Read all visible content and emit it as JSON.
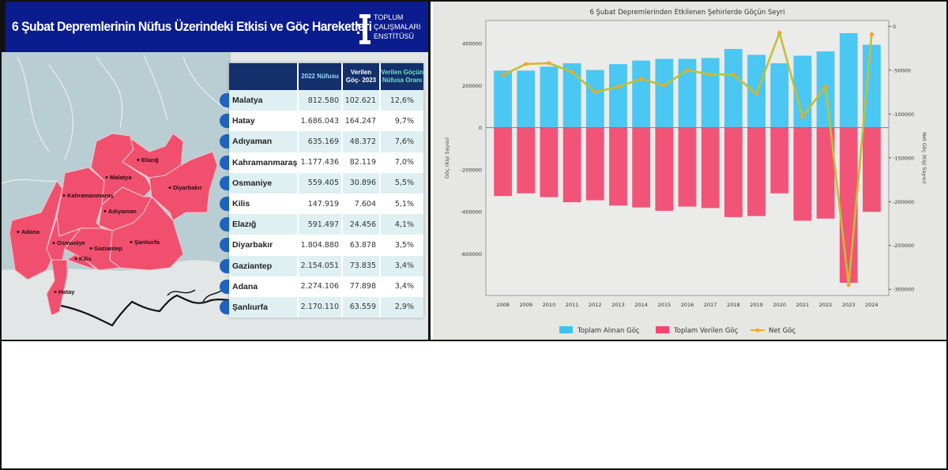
{
  "infographic": {
    "title": "6 Şubat Depremlerinin Nüfus Üzerindeki Etkisi ve Göç Hareketleri",
    "logo_lines": [
      "TOPLUM",
      "ÇALIŞMALARI",
      "ENSTİTÜSÜ"
    ],
    "header_color": "#0b1c8e",
    "map_color": "#f0506e",
    "map_labels": [
      "Elazığ",
      "Malatya",
      "Diyarbakır",
      "Kahramanmaraş",
      "Adıyaman",
      "Adana",
      "Osmaniye",
      "Gaziantep",
      "Şanlıurfa",
      "Kilis",
      "Hatay"
    ],
    "table": {
      "headers": [
        "",
        "2022 Nüfusu",
        "Verilen Göç- 2023",
        "Verilen Göçün Nüfusa Oranı"
      ],
      "rows": [
        [
          "Malatya",
          "812.580",
          "102.621",
          "12,6%"
        ],
        [
          "Hatay",
          "1.686.043",
          "164.247",
          "9,7%"
        ],
        [
          "Adıyaman",
          "635.169",
          "48.372",
          "7,6%"
        ],
        [
          "Kahramanmaraş",
          "1.177.436",
          "82.119",
          "7,0%"
        ],
        [
          "Osmaniye",
          "559.405",
          "30.896",
          "5,5%"
        ],
        [
          "Kilis",
          "147.919",
          "7.604",
          "5,1%"
        ],
        [
          "Elazığ",
          "591.497",
          "24.456",
          "4,1%"
        ],
        [
          "Diyarbakır",
          "1.804.880",
          "63.878",
          "3,5%"
        ],
        [
          "Gaziantep",
          "2.154.051",
          "73.835",
          "3,4%"
        ],
        [
          "Adana",
          "2.274.106",
          "77.898",
          "3,4%"
        ],
        [
          "Şanlıurfa",
          "2.170.110",
          "63.559",
          "2,9%"
        ]
      ]
    }
  },
  "chart_data": {
    "type": "bar",
    "title": "6 Şubat Depremlerinden Etkilenen Şehirlerde Göçün Seyri",
    "xlabel": "",
    "ylabel": "Göç (Kişi Sayısı)",
    "ylabel_right": "Net Göç (Kişi Sayısı)",
    "categories": [
      "2008",
      "2009",
      "2010",
      "2011",
      "2012",
      "2013",
      "2014",
      "2015",
      "2016",
      "2017",
      "2018",
      "2019",
      "2020",
      "2021",
      "2022",
      "2023",
      "2024"
    ],
    "series": [
      {
        "name": "Toplam Alınan Göç",
        "type": "bar",
        "axis": "left",
        "color": "#3cc3f2",
        "values": [
          271000,
          271000,
          290000,
          306000,
          274000,
          302000,
          319000,
          327000,
          327000,
          331000,
          374000,
          346000,
          306000,
          342000,
          362000,
          449000,
          394000
        ]
      },
      {
        "name": "Toplam Verilen Göç",
        "type": "bar",
        "axis": "left",
        "color": "#f2476e",
        "values": [
          -325000,
          -312000,
          -330000,
          -354000,
          -345000,
          -370000,
          -379000,
          -395000,
          -375000,
          -382000,
          -425000,
          -420000,
          -312000,
          -442000,
          -432000,
          -737000,
          -400000
        ]
      },
      {
        "name": "Net Göç",
        "type": "line",
        "axis": "right",
        "color": "#f5a623",
        "inner_color": "#7ee04a",
        "values": [
          -55500,
          -43000,
          -42000,
          -52000,
          -75000,
          -69000,
          -60000,
          -67500,
          -50000,
          -55000,
          -55000,
          -77000,
          -7500,
          -103000,
          -69000,
          -295000,
          -9000
        ]
      }
    ],
    "ylim": [
      -797000,
      509000
    ],
    "yticks": [
      400000,
      200000,
      0,
      -200000,
      -400000,
      -600000
    ],
    "ylim_right": [
      -307000,
      6600
    ],
    "yticks_right": [
      0,
      -50000,
      -100000,
      -150000,
      -200000,
      -250000,
      -300000
    ],
    "zero_line": true,
    "grid": false,
    "legend": "bottom"
  }
}
